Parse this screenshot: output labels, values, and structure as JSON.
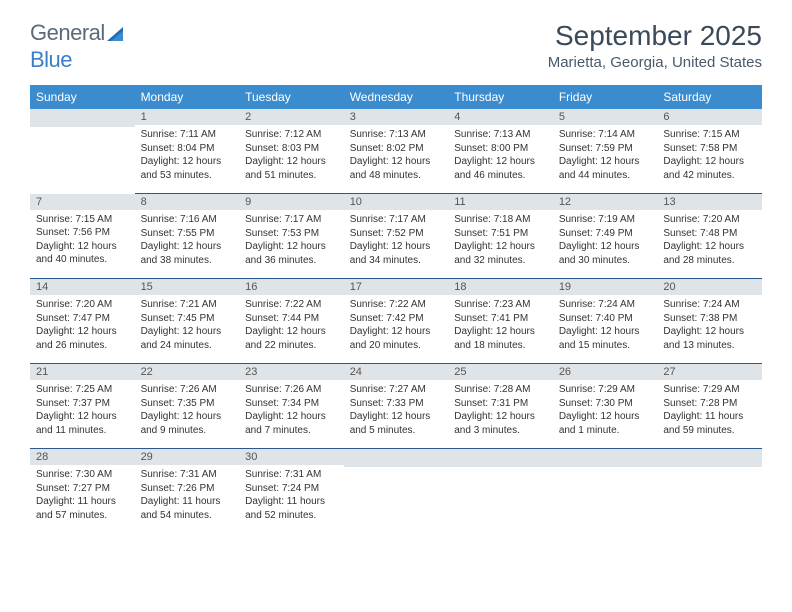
{
  "logo": {
    "text1": "General",
    "text2": "Blue"
  },
  "title": "September 2025",
  "location": "Marietta, Georgia, United States",
  "dayHeaders": [
    "Sunday",
    "Monday",
    "Tuesday",
    "Wednesday",
    "Thursday",
    "Friday",
    "Saturday"
  ],
  "colors": {
    "headerBg": "#3b8cce",
    "headerText": "#ffffff",
    "dayNumBg": "#dfe4e8",
    "rowBorder": "#2a5a8a"
  },
  "weeks": [
    [
      {
        "num": "",
        "sunrise": "",
        "sunset": "",
        "daylight": ""
      },
      {
        "num": "1",
        "sunrise": "Sunrise: 7:11 AM",
        "sunset": "Sunset: 8:04 PM",
        "daylight": "Daylight: 12 hours and 53 minutes."
      },
      {
        "num": "2",
        "sunrise": "Sunrise: 7:12 AM",
        "sunset": "Sunset: 8:03 PM",
        "daylight": "Daylight: 12 hours and 51 minutes."
      },
      {
        "num": "3",
        "sunrise": "Sunrise: 7:13 AM",
        "sunset": "Sunset: 8:02 PM",
        "daylight": "Daylight: 12 hours and 48 minutes."
      },
      {
        "num": "4",
        "sunrise": "Sunrise: 7:13 AM",
        "sunset": "Sunset: 8:00 PM",
        "daylight": "Daylight: 12 hours and 46 minutes."
      },
      {
        "num": "5",
        "sunrise": "Sunrise: 7:14 AM",
        "sunset": "Sunset: 7:59 PM",
        "daylight": "Daylight: 12 hours and 44 minutes."
      },
      {
        "num": "6",
        "sunrise": "Sunrise: 7:15 AM",
        "sunset": "Sunset: 7:58 PM",
        "daylight": "Daylight: 12 hours and 42 minutes."
      }
    ],
    [
      {
        "num": "7",
        "sunrise": "Sunrise: 7:15 AM",
        "sunset": "Sunset: 7:56 PM",
        "daylight": "Daylight: 12 hours and 40 minutes."
      },
      {
        "num": "8",
        "sunrise": "Sunrise: 7:16 AM",
        "sunset": "Sunset: 7:55 PM",
        "daylight": "Daylight: 12 hours and 38 minutes."
      },
      {
        "num": "9",
        "sunrise": "Sunrise: 7:17 AM",
        "sunset": "Sunset: 7:53 PM",
        "daylight": "Daylight: 12 hours and 36 minutes."
      },
      {
        "num": "10",
        "sunrise": "Sunrise: 7:17 AM",
        "sunset": "Sunset: 7:52 PM",
        "daylight": "Daylight: 12 hours and 34 minutes."
      },
      {
        "num": "11",
        "sunrise": "Sunrise: 7:18 AM",
        "sunset": "Sunset: 7:51 PM",
        "daylight": "Daylight: 12 hours and 32 minutes."
      },
      {
        "num": "12",
        "sunrise": "Sunrise: 7:19 AM",
        "sunset": "Sunset: 7:49 PM",
        "daylight": "Daylight: 12 hours and 30 minutes."
      },
      {
        "num": "13",
        "sunrise": "Sunrise: 7:20 AM",
        "sunset": "Sunset: 7:48 PM",
        "daylight": "Daylight: 12 hours and 28 minutes."
      }
    ],
    [
      {
        "num": "14",
        "sunrise": "Sunrise: 7:20 AM",
        "sunset": "Sunset: 7:47 PM",
        "daylight": "Daylight: 12 hours and 26 minutes."
      },
      {
        "num": "15",
        "sunrise": "Sunrise: 7:21 AM",
        "sunset": "Sunset: 7:45 PM",
        "daylight": "Daylight: 12 hours and 24 minutes."
      },
      {
        "num": "16",
        "sunrise": "Sunrise: 7:22 AM",
        "sunset": "Sunset: 7:44 PM",
        "daylight": "Daylight: 12 hours and 22 minutes."
      },
      {
        "num": "17",
        "sunrise": "Sunrise: 7:22 AM",
        "sunset": "Sunset: 7:42 PM",
        "daylight": "Daylight: 12 hours and 20 minutes."
      },
      {
        "num": "18",
        "sunrise": "Sunrise: 7:23 AM",
        "sunset": "Sunset: 7:41 PM",
        "daylight": "Daylight: 12 hours and 18 minutes."
      },
      {
        "num": "19",
        "sunrise": "Sunrise: 7:24 AM",
        "sunset": "Sunset: 7:40 PM",
        "daylight": "Daylight: 12 hours and 15 minutes."
      },
      {
        "num": "20",
        "sunrise": "Sunrise: 7:24 AM",
        "sunset": "Sunset: 7:38 PM",
        "daylight": "Daylight: 12 hours and 13 minutes."
      }
    ],
    [
      {
        "num": "21",
        "sunrise": "Sunrise: 7:25 AM",
        "sunset": "Sunset: 7:37 PM",
        "daylight": "Daylight: 12 hours and 11 minutes."
      },
      {
        "num": "22",
        "sunrise": "Sunrise: 7:26 AM",
        "sunset": "Sunset: 7:35 PM",
        "daylight": "Daylight: 12 hours and 9 minutes."
      },
      {
        "num": "23",
        "sunrise": "Sunrise: 7:26 AM",
        "sunset": "Sunset: 7:34 PM",
        "daylight": "Daylight: 12 hours and 7 minutes."
      },
      {
        "num": "24",
        "sunrise": "Sunrise: 7:27 AM",
        "sunset": "Sunset: 7:33 PM",
        "daylight": "Daylight: 12 hours and 5 minutes."
      },
      {
        "num": "25",
        "sunrise": "Sunrise: 7:28 AM",
        "sunset": "Sunset: 7:31 PM",
        "daylight": "Daylight: 12 hours and 3 minutes."
      },
      {
        "num": "26",
        "sunrise": "Sunrise: 7:29 AM",
        "sunset": "Sunset: 7:30 PM",
        "daylight": "Daylight: 12 hours and 1 minute."
      },
      {
        "num": "27",
        "sunrise": "Sunrise: 7:29 AM",
        "sunset": "Sunset: 7:28 PM",
        "daylight": "Daylight: 11 hours and 59 minutes."
      }
    ],
    [
      {
        "num": "28",
        "sunrise": "Sunrise: 7:30 AM",
        "sunset": "Sunset: 7:27 PM",
        "daylight": "Daylight: 11 hours and 57 minutes."
      },
      {
        "num": "29",
        "sunrise": "Sunrise: 7:31 AM",
        "sunset": "Sunset: 7:26 PM",
        "daylight": "Daylight: 11 hours and 54 minutes."
      },
      {
        "num": "30",
        "sunrise": "Sunrise: 7:31 AM",
        "sunset": "Sunset: 7:24 PM",
        "daylight": "Daylight: 11 hours and 52 minutes."
      },
      {
        "num": "",
        "sunrise": "",
        "sunset": "",
        "daylight": ""
      },
      {
        "num": "",
        "sunrise": "",
        "sunset": "",
        "daylight": ""
      },
      {
        "num": "",
        "sunrise": "",
        "sunset": "",
        "daylight": ""
      },
      {
        "num": "",
        "sunrise": "",
        "sunset": "",
        "daylight": ""
      }
    ]
  ]
}
